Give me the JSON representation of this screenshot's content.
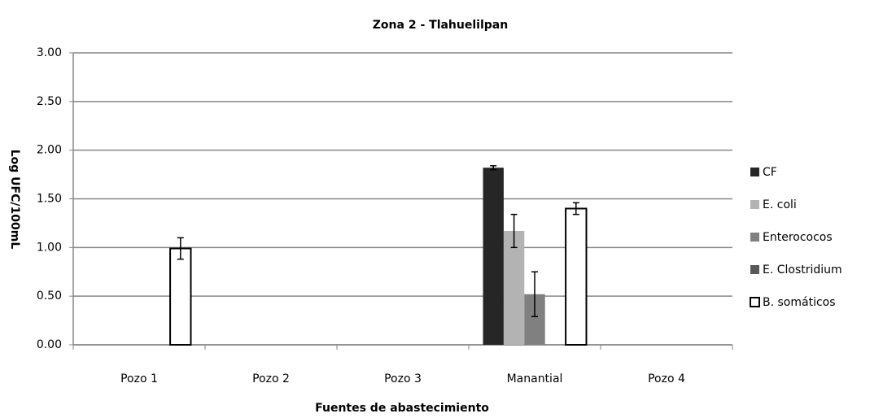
{
  "chart_data": {
    "type": "bar",
    "title": "Zona 2 - Tlahuelilpan",
    "x_label": "Fuentes de abastecimiento",
    "y_label": "Log UFC/100mL",
    "categories": [
      "Pozo 1",
      "Pozo 2",
      "Pozo 3",
      "Manantial",
      "Pozo 4"
    ],
    "series": [
      {
        "name": "CF",
        "color": "#262626",
        "values": [
          0,
          0,
          0,
          1.82,
          0
        ],
        "errors": [
          null,
          null,
          null,
          0.02,
          null
        ]
      },
      {
        "name": "E.  coli",
        "color": "#b3b3b3",
        "values": [
          0,
          0,
          0,
          1.17,
          0
        ],
        "errors": [
          null,
          null,
          null,
          0.17,
          null
        ]
      },
      {
        "name": "Enterococos",
        "color": "#808080",
        "values": [
          0,
          0,
          0,
          0.52,
          0
        ],
        "errors": [
          null,
          null,
          null,
          0.23,
          null
        ]
      },
      {
        "name": "E. Clostridium",
        "color": "#595959",
        "values": [
          0,
          0,
          0,
          0,
          0
        ],
        "errors": [
          null,
          null,
          null,
          null,
          null
        ]
      },
      {
        "name": "B. somáticos",
        "color": "#ffffff",
        "values": [
          0.99,
          0,
          0,
          1.4,
          0
        ],
        "errors": [
          0.11,
          null,
          null,
          0.06,
          null
        ]
      }
    ],
    "ylim": [
      0,
      3
    ],
    "yticks": [
      {
        "value": 0,
        "label": "0.00"
      },
      {
        "value": 0.5,
        "label": "0.50"
      },
      {
        "value": 1,
        "label": "1.00"
      },
      {
        "value": 1.5,
        "label": "1.50"
      },
      {
        "value": 2,
        "label": "2.00"
      },
      {
        "value": 2.5,
        "label": "2.50"
      },
      {
        "value": 3,
        "label": "3.00"
      }
    ],
    "grid": true,
    "legend": "right"
  }
}
